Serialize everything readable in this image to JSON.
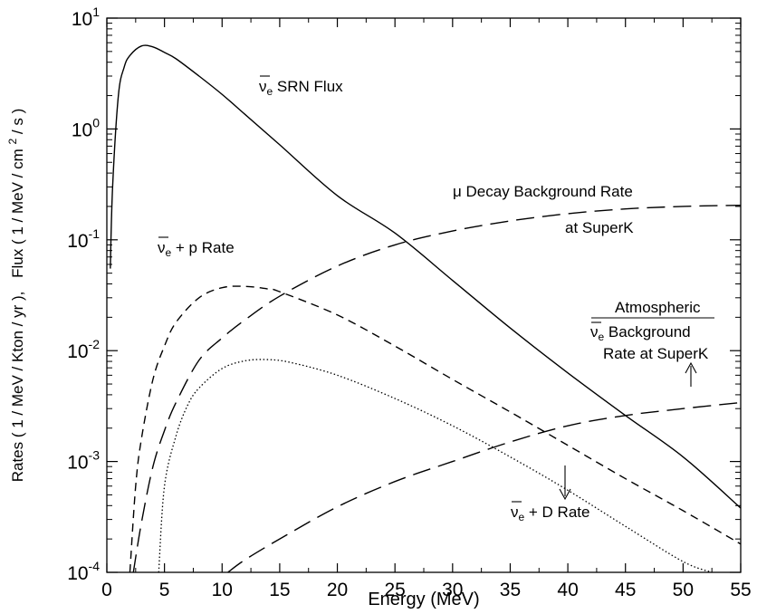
{
  "chart_data": {
    "type": "line",
    "xlabel": "Energy (MeV)",
    "ylabel": {
      "part1": "Rates ( 1 / MeV / Kton / yr ),",
      "part2": "Flux ( 1 / MeV / cm",
      "part2_sup": "2",
      "part2_end": " / s )"
    },
    "xlim": [
      0,
      55
    ],
    "ylim": [
      0.0001,
      10
    ],
    "yscale": "log",
    "grid": false,
    "x_ticks": [
      "0",
      "5",
      "10",
      "15",
      "20",
      "25",
      "30",
      "35",
      "40",
      "45",
      "50",
      "55"
    ],
    "y_ticks": [
      {
        "base": "10",
        "exp": "-4"
      },
      {
        "base": "10",
        "exp": "-3"
      },
      {
        "base": "10",
        "exp": "-2"
      },
      {
        "base": "10",
        "exp": "-1"
      },
      {
        "base": "10",
        "exp": "0"
      },
      {
        "base": "10",
        "exp": "1"
      }
    ],
    "series": [
      {
        "name": "ν̄e SRN Flux",
        "style": "solid",
        "x": [
          0.3,
          0.5,
          1,
          1.5,
          2,
          3,
          4,
          5,
          6,
          8,
          10,
          12,
          15,
          20,
          25,
          30,
          35,
          40,
          45,
          50,
          55
        ],
        "y": [
          0.055,
          0.3,
          2.0,
          3.6,
          4.6,
          5.6,
          5.5,
          4.9,
          4.3,
          3.0,
          2.05,
          1.35,
          0.72,
          0.25,
          0.115,
          0.043,
          0.016,
          0.0063,
          0.0026,
          0.0011,
          0.00038
        ]
      },
      {
        "name": "μ Decay Background Rate at SuperK",
        "style": "long-dash",
        "x": [
          2.3,
          3,
          4,
          5,
          6,
          8,
          10,
          12,
          15,
          20,
          25,
          30,
          35,
          40,
          45,
          50,
          55
        ],
        "y": [
          0.0001,
          0.00028,
          0.0009,
          0.0019,
          0.0034,
          0.0082,
          0.013,
          0.019,
          0.031,
          0.058,
          0.09,
          0.12,
          0.148,
          0.172,
          0.19,
          0.2,
          0.205
        ]
      },
      {
        "name": "ν̄e + p Rate",
        "style": "short-dash",
        "x": [
          2.0,
          2.5,
          3,
          4,
          5,
          6,
          8,
          10,
          12,
          14,
          15,
          20,
          25,
          30,
          35,
          40,
          45,
          50,
          55
        ],
        "y": [
          0.0001,
          0.0006,
          0.0016,
          0.0055,
          0.011,
          0.018,
          0.03,
          0.037,
          0.038,
          0.036,
          0.034,
          0.021,
          0.011,
          0.0055,
          0.0028,
          0.0014,
          0.0007,
          0.00036,
          0.00018
        ]
      },
      {
        "name": "ν̄e + D Rate",
        "style": "dotted",
        "x": [
          4.5,
          5,
          6,
          7,
          8,
          10,
          12,
          14,
          16,
          20,
          25,
          30,
          35,
          40,
          45,
          50,
          52.5
        ],
        "y": [
          0.0001,
          0.0006,
          0.0017,
          0.0032,
          0.0046,
          0.0069,
          0.0081,
          0.0083,
          0.0078,
          0.006,
          0.0037,
          0.0021,
          0.0011,
          0.00055,
          0.00026,
          0.000125,
          0.0001
        ]
      },
      {
        "name": "Atmospheric ν̄e Background Rate at SuperK",
        "style": "long-dash",
        "x": [
          10.5,
          12,
          15,
          20,
          25,
          30,
          35,
          40,
          45,
          50,
          55
        ],
        "y": [
          0.0001,
          0.00013,
          0.0002,
          0.00039,
          0.00066,
          0.001,
          0.0015,
          0.0021,
          0.0026,
          0.003,
          0.0034
        ]
      }
    ],
    "annotations": {
      "srn": {
        "bar": "ν",
        "sub": "e",
        "rest": " SRN Flux"
      },
      "mu_line1": "μ Decay Background Rate",
      "mu_line2": "at SuperK",
      "vp": {
        "bar": "ν",
        "sub": "e",
        "rest": " + p Rate"
      },
      "atm_line1": "Atmospheric",
      "atm_line2": {
        "bar": "ν",
        "sub": "e",
        "rest": " Background"
      },
      "atm_line3": "Rate at SuperK",
      "vd": {
        "bar": "ν",
        "sub": "e",
        "rest": " + D Rate"
      }
    }
  }
}
